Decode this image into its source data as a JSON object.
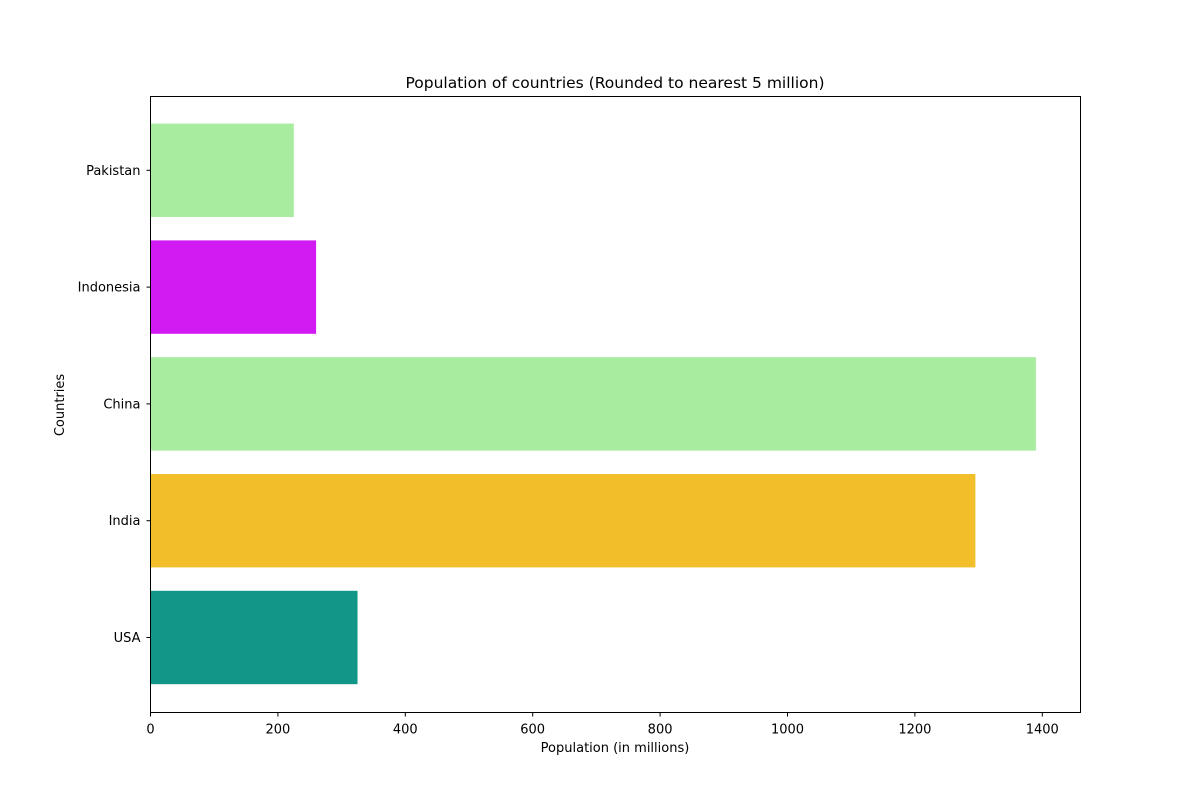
{
  "chart_data": {
    "type": "bar",
    "orientation": "horizontal",
    "title": "Population of countries (Rounded to nearest 5 million)",
    "xlabel": "Population (in millions)",
    "ylabel": "Countries",
    "categories": [
      "USA",
      "India",
      "China",
      "Indonesia",
      "Pakistan"
    ],
    "values": [
      325,
      1295,
      1390,
      260,
      225
    ],
    "colors": [
      "#119688",
      "#f2bf2a",
      "#a8eca0",
      "#d21bf2",
      "#a8eca0"
    ],
    "xlim": [
      0,
      1460
    ],
    "xticks": [
      0,
      200,
      400,
      600,
      800,
      1000,
      1200,
      1400
    ],
    "grid": false,
    "legend": "none"
  }
}
